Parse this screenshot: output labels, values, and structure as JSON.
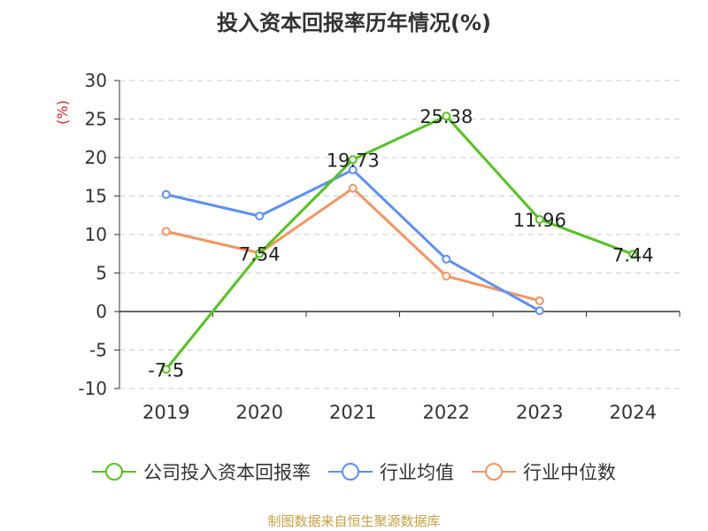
{
  "chart_data": {
    "type": "line",
    "title": "投入资本回报率历年情况(%)",
    "ylabel": "(%)",
    "categories": [
      "2019",
      "2020",
      "2021",
      "2022",
      "2023",
      "2024"
    ],
    "ylim": [
      -10,
      30
    ],
    "yticks": [
      -10,
      -5,
      0,
      5,
      10,
      15,
      20,
      25,
      30
    ],
    "grid": true,
    "legend_position": "bottom",
    "series": [
      {
        "name": "公司投入资本回报率",
        "color": "#52c41a",
        "values": [
          -7.5,
          7.54,
          19.73,
          25.38,
          11.96,
          7.44
        ],
        "labels": [
          "-7.5",
          "7.54",
          "19.73",
          "25.38",
          "11.96",
          "7.44"
        ]
      },
      {
        "name": "行业均值",
        "color": "#5b8ff9",
        "values": [
          15.2,
          12.4,
          18.4,
          6.8,
          0.1,
          null
        ]
      },
      {
        "name": "行业中位数",
        "color": "#f6945f",
        "values": [
          10.4,
          7.6,
          16.0,
          4.6,
          1.4,
          null
        ]
      }
    ]
  },
  "source": "制图数据来自恒生聚源数据库",
  "colors": {
    "axis": "#333333",
    "grid": "#cccccc",
    "ylabel": "#e02020",
    "source": "#c8a040"
  }
}
